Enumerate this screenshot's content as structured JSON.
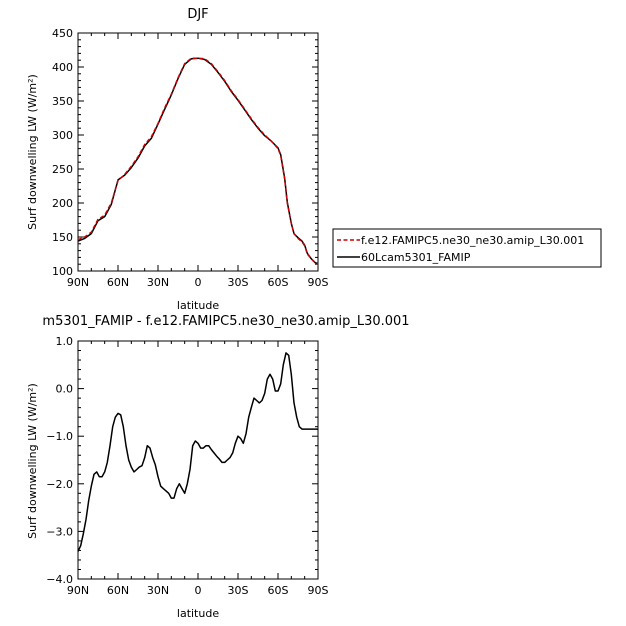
{
  "chart_data": [
    {
      "type": "line",
      "title": "DJF",
      "xlabel": "latitude",
      "ylabel": "Surf downwelling LW (W/m²)",
      "xlim": [
        -90,
        90
      ],
      "ylim": [
        100,
        450
      ],
      "xticks": [
        -90,
        -60,
        -30,
        0,
        30,
        60,
        90
      ],
      "xtick_labels": [
        "90N",
        "60N",
        "30N",
        "0",
        "30S",
        "60S",
        "90S"
      ],
      "yticks": [
        100,
        150,
        200,
        250,
        300,
        350,
        400,
        450
      ],
      "ytick_labels": [
        "100",
        "150",
        "200",
        "250",
        "300",
        "350",
        "400",
        "450"
      ],
      "legend": "outside-right",
      "series": [
        {
          "name": "f.e12.FAMIPC5.ne30_ne30.amip_L30.001",
          "color": "#cc0000",
          "dash": "dashed",
          "x": [
            -90,
            -85,
            -80,
            -75,
            -70,
            -65,
            -60,
            -55,
            -50,
            -45,
            -40,
            -35,
            -30,
            -25,
            -20,
            -15,
            -10,
            -5,
            0,
            5,
            10,
            15,
            20,
            25,
            30,
            35,
            40,
            45,
            50,
            55,
            60,
            62,
            65,
            67,
            70,
            72,
            75,
            78,
            80,
            82,
            85,
            88,
            90
          ],
          "y": [
            146,
            150,
            157,
            176,
            182,
            200,
            233,
            242,
            254,
            268,
            286,
            297,
            317,
            340,
            360,
            384,
            405,
            413,
            413,
            412,
            405,
            393,
            380,
            365,
            352,
            338,
            324,
            311,
            300,
            291,
            280,
            270,
            235,
            200,
            170,
            155,
            148,
            143,
            137,
            125,
            118,
            112,
            110
          ]
        },
        {
          "name": "60Lcam5301_FAMIP",
          "color": "#000000",
          "dash": "solid",
          "x": [
            -90,
            -85,
            -80,
            -75,
            -70,
            -65,
            -60,
            -55,
            -50,
            -45,
            -40,
            -35,
            -30,
            -25,
            -20,
            -15,
            -10,
            -5,
            0,
            5,
            10,
            15,
            20,
            25,
            30,
            35,
            40,
            45,
            50,
            55,
            60,
            62,
            65,
            67,
            70,
            72,
            75,
            78,
            80,
            82,
            85,
            88,
            90
          ],
          "y": [
            144,
            148,
            155,
            174,
            180,
            198,
            234,
            241,
            252,
            266,
            284,
            295,
            316,
            338,
            359,
            383,
            404,
            412,
            413,
            411,
            404,
            392,
            379,
            364,
            351,
            337,
            323,
            310,
            299,
            291,
            281,
            271,
            236,
            201,
            170,
            155,
            149,
            144,
            138,
            126,
            118,
            112,
            111
          ]
        }
      ]
    },
    {
      "type": "line",
      "title": "m5301_FAMIP  -  f.e12.FAMIPC5.ne30_ne30.amip_L30.001",
      "xlabel": "latitude",
      "ylabel": "Surf downwelling LW (W/m²)",
      "xlim": [
        -90,
        90
      ],
      "ylim": [
        -4.0,
        1.0
      ],
      "xticks": [
        -90,
        -60,
        -30,
        0,
        30,
        60,
        90
      ],
      "xtick_labels": [
        "90N",
        "60N",
        "30N",
        "0",
        "30S",
        "60S",
        "90S"
      ],
      "yticks": [
        -4.0,
        -3.0,
        -2.0,
        -1.0,
        0.0,
        1.0
      ],
      "ytick_labels": [
        "−4.0",
        "−3.0",
        "−2.0",
        "−1.0",
        "0.0",
        "1.0"
      ],
      "series": [
        {
          "name": "",
          "color": "#000000",
          "dash": "solid",
          "x": [
            -90,
            -88,
            -86,
            -84,
            -82,
            -80,
            -78,
            -76,
            -74,
            -72,
            -70,
            -68,
            -66,
            -64,
            -62,
            -60,
            -58,
            -56,
            -54,
            -52,
            -50,
            -48,
            -46,
            -44,
            -42,
            -40,
            -38,
            -36,
            -34,
            -32,
            -30,
            -28,
            -26,
            -24,
            -22,
            -20,
            -18,
            -16,
            -14,
            -12,
            -10,
            -8,
            -6,
            -4,
            -2,
            0,
            2,
            4,
            6,
            8,
            10,
            12,
            14,
            16,
            18,
            20,
            22,
            24,
            26,
            28,
            30,
            32,
            34,
            36,
            38,
            40,
            42,
            44,
            46,
            48,
            50,
            52,
            54,
            56,
            58,
            60,
            62,
            64,
            66,
            68,
            70,
            72,
            74,
            76,
            78,
            80,
            82,
            84,
            86,
            88,
            90
          ],
          "y": [
            -3.42,
            -3.3,
            -3.05,
            -2.75,
            -2.35,
            -2.05,
            -1.8,
            -1.75,
            -1.85,
            -1.85,
            -1.75,
            -1.55,
            -1.2,
            -0.8,
            -0.6,
            -0.52,
            -0.55,
            -0.8,
            -1.2,
            -1.5,
            -1.65,
            -1.75,
            -1.7,
            -1.65,
            -1.62,
            -1.45,
            -1.2,
            -1.25,
            -1.45,
            -1.6,
            -1.85,
            -2.05,
            -2.1,
            -2.15,
            -2.2,
            -2.3,
            -2.3,
            -2.1,
            -2.0,
            -2.1,
            -2.2,
            -2.0,
            -1.7,
            -1.2,
            -1.1,
            -1.15,
            -1.25,
            -1.25,
            -1.2,
            -1.2,
            -1.28,
            -1.35,
            -1.42,
            -1.48,
            -1.55,
            -1.55,
            -1.5,
            -1.45,
            -1.35,
            -1.15,
            -1.0,
            -1.05,
            -1.15,
            -0.95,
            -0.6,
            -0.4,
            -0.2,
            -0.25,
            -0.3,
            -0.25,
            -0.1,
            0.2,
            0.3,
            0.2,
            -0.05,
            -0.05,
            0.1,
            0.5,
            0.75,
            0.7,
            0.3,
            -0.3,
            -0.6,
            -0.8,
            -0.85,
            -0.85,
            -0.85,
            -0.85,
            -0.85,
            -0.85,
            -0.85
          ]
        }
      ]
    }
  ]
}
